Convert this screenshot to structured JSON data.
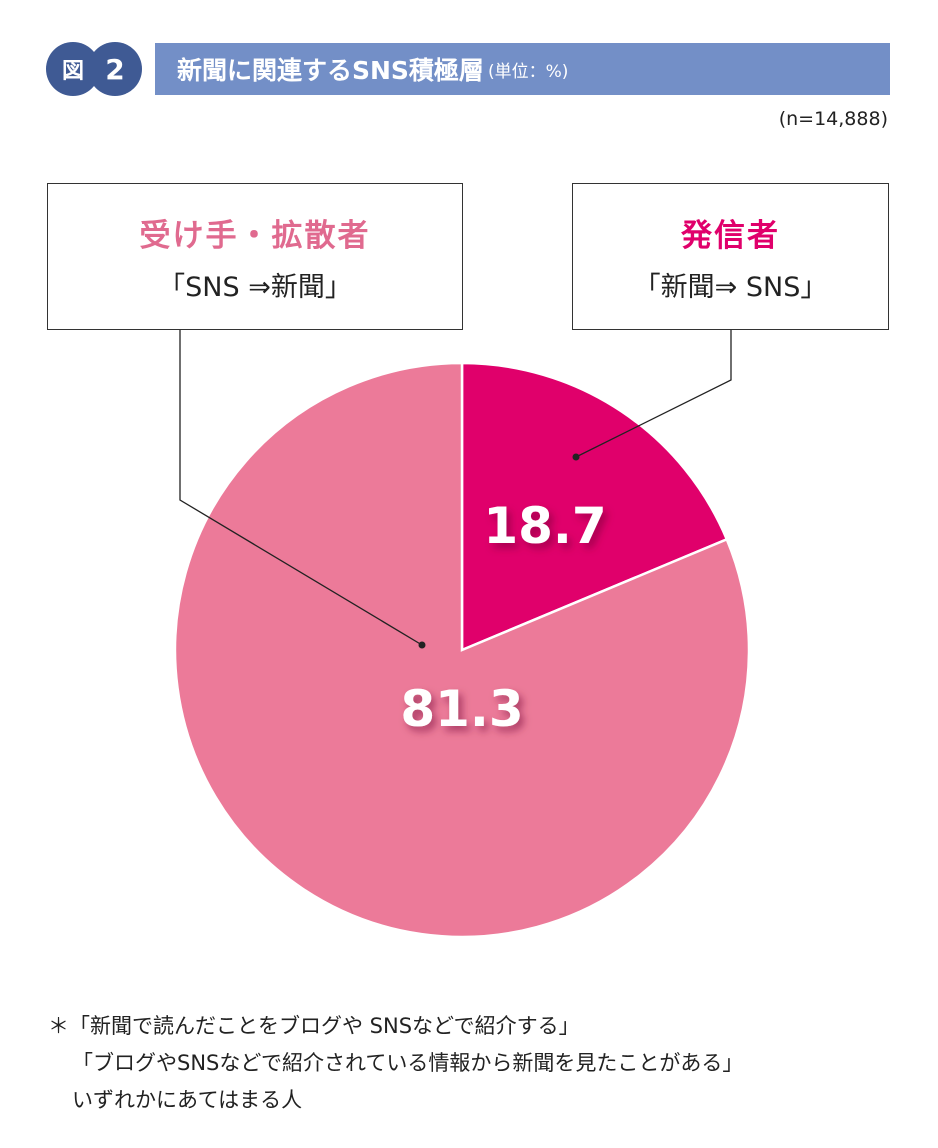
{
  "figure": {
    "label": "図",
    "number": "2"
  },
  "title": {
    "main": "新聞に関連するSNS積極層",
    "unit": "(単位：%)"
  },
  "sample": "(n=14,888)",
  "callouts": [
    {
      "heading": "受け手・拡散者",
      "sub": "「SNS ⇒新聞」"
    },
    {
      "heading": "発信者",
      "sub": "「新聞⇒ SNS」"
    }
  ],
  "footnote": [
    "＊「新聞で読んだことをブログや SNSなどで紹介する」",
    "「ブログやSNSなどで紹介されている情報から新聞を見たことがある」",
    "いずれかにあてはまる人"
  ],
  "chart_data": {
    "type": "pie",
    "start": "top",
    "direction": "clockwise",
    "slices": [
      {
        "label": "発信者",
        "value": 18.7,
        "value_label": "18.7",
        "color": "#e0006b"
      },
      {
        "label": "受け手・拡散者",
        "value": 81.3,
        "value_label": "81.3",
        "color": "#ec7a99"
      }
    ]
  }
}
